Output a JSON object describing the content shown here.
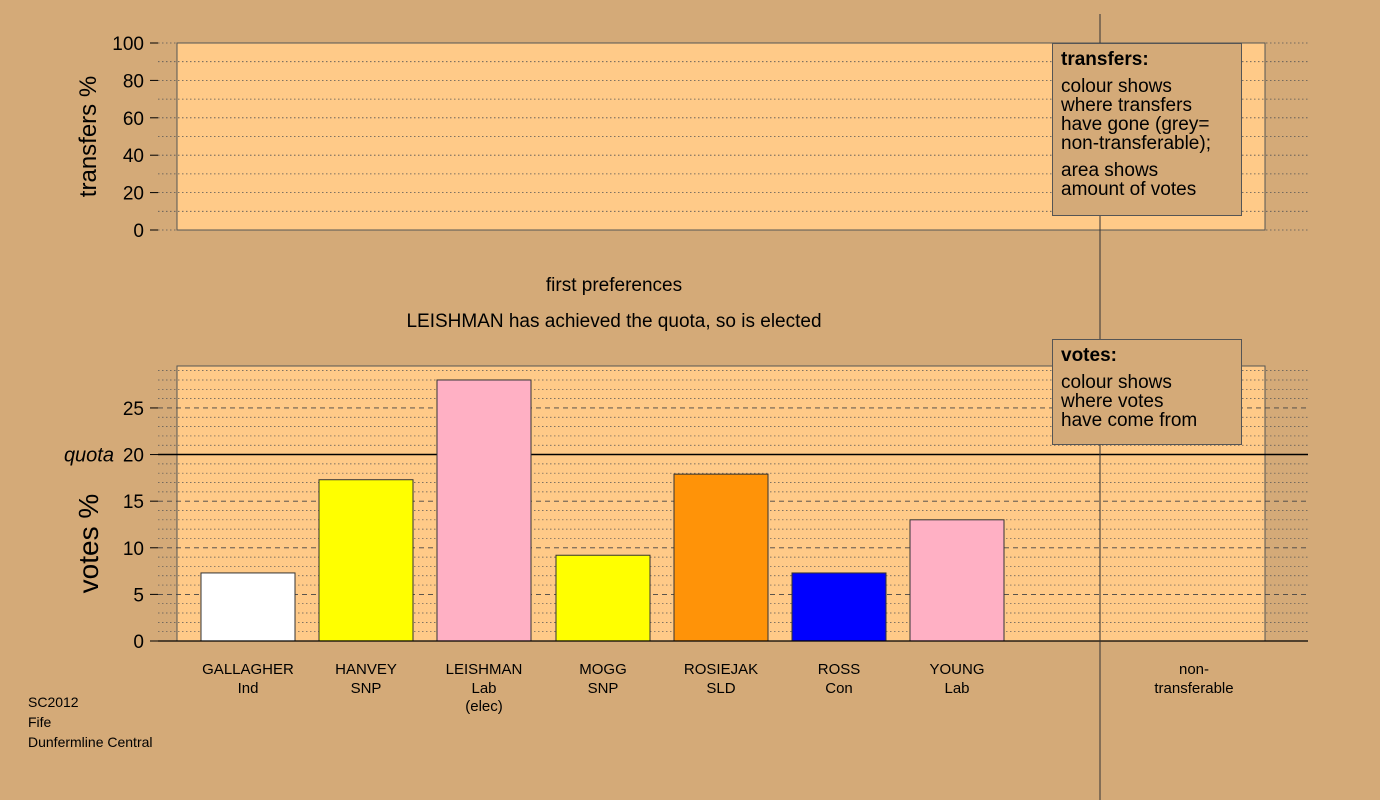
{
  "chart_data": [
    {
      "type": "bar",
      "panel": "transfers",
      "ylabel": "transfers %",
      "ylim": [
        0,
        100
      ],
      "yticks": [
        0,
        20,
        40,
        60,
        80,
        100
      ],
      "categories": [],
      "values": []
    },
    {
      "type": "bar",
      "panel": "votes",
      "ylabel": "votes %",
      "ylim": [
        0,
        29.5
      ],
      "yticks": [
        0,
        5,
        10,
        15,
        20,
        25
      ],
      "quota": 20,
      "quota_label": "quota",
      "categories": [
        {
          "name": "GALLAGHER",
          "party": "Ind",
          "note": "",
          "value": 7.3,
          "color": "#ffffff"
        },
        {
          "name": "HANVEY",
          "party": "SNP",
          "note": "",
          "value": 17.3,
          "color": "#ffff00"
        },
        {
          "name": "LEISHMAN",
          "party": "Lab",
          "note": "(elec)",
          "value": 28.0,
          "color": "#ffb0c4"
        },
        {
          "name": "MOGG",
          "party": "SNP",
          "note": "",
          "value": 9.2,
          "color": "#ffff00"
        },
        {
          "name": "ROSIEJAK",
          "party": "SLD",
          "note": "",
          "value": 17.9,
          "color": "#ff9308"
        },
        {
          "name": "ROSS",
          "party": "Con",
          "note": "",
          "value": 7.3,
          "color": "#0000ff"
        },
        {
          "name": "YOUNG",
          "party": "Lab",
          "note": "",
          "value": 13.0,
          "color": "#ffb0c4"
        }
      ],
      "nontransferable": {
        "label_line1": "non-",
        "label_line2": "transferable",
        "value": 0
      }
    }
  ],
  "stage_title": "first preferences",
  "stage_message": "LEISHMAN has achieved the quota, so is elected",
  "legend_transfers": {
    "title": "transfers:",
    "lines1": [
      "colour shows",
      "where transfers",
      "have gone (grey=",
      "non-transferable);"
    ],
    "lines2": [
      "area shows",
      "amount of votes"
    ]
  },
  "legend_votes": {
    "title": "votes:",
    "lines1": [
      "colour shows",
      "where votes",
      "have come from"
    ]
  },
  "caption": {
    "line1": "SC2012",
    "line2": "Fife",
    "line3": "Dunfermline Central"
  },
  "colors": {
    "background": "#d4aa78",
    "plot_area": "#ffca88",
    "axis": "#000000"
  }
}
